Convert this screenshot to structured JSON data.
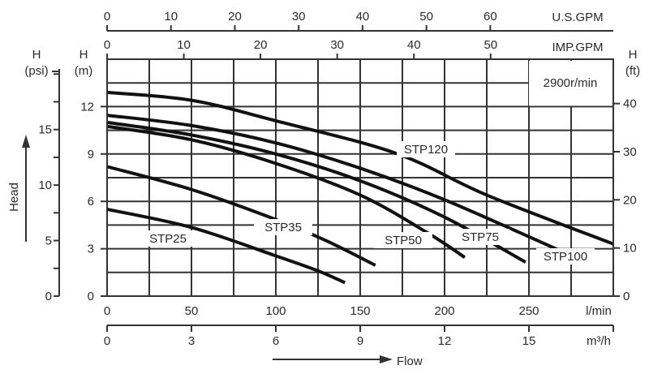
{
  "chart_data": {
    "type": "line",
    "annotation": "2900r/min",
    "xlabel": "Flow",
    "ylabel": "Head",
    "x_units": "l/min",
    "y_units_label": [
      "H",
      "(m)"
    ],
    "xlim": [
      0,
      300
    ],
    "ylim": [
      0,
      15
    ],
    "grid": true,
    "x_ticks": [
      0,
      50,
      100,
      150,
      200,
      250
    ],
    "y_ticks": [
      0,
      3,
      6,
      9,
      12
    ],
    "secondary_axes": {
      "us_gpm": {
        "label": "U.S.GPM",
        "ticks": [
          0,
          10,
          20,
          30,
          40,
          50,
          60
        ]
      },
      "imp_gpm": {
        "label": "IMP.GPM",
        "ticks": [
          0,
          10,
          20,
          30,
          40,
          50
        ]
      },
      "m3h": {
        "label": "m³/h",
        "ticks": [
          0,
          3,
          6,
          9,
          12,
          15
        ]
      },
      "psi": {
        "label": [
          "H",
          "(psi)"
        ],
        "ticks": [
          0,
          5,
          10,
          15
        ]
      },
      "ft": {
        "label": [
          "H",
          "(ft)"
        ],
        "ticks": [
          0,
          10,
          20,
          30,
          40
        ]
      }
    },
    "series": [
      {
        "name": "STP120",
        "x": [
          0,
          50,
          100,
          171,
          225,
          300
        ],
        "y": [
          12.9,
          12.4,
          11.1,
          9.05,
          6.4,
          3.3
        ]
      },
      {
        "name": "STP100",
        "x": [
          0,
          50,
          100,
          150,
          200,
          268
        ],
        "y": [
          11.45,
          10.8,
          9.7,
          8.1,
          6.1,
          2.9
        ]
      },
      {
        "name": "STP75",
        "x": [
          0,
          50,
          100,
          150,
          200,
          248
        ],
        "y": [
          11.0,
          10.2,
          9.0,
          7.3,
          5.0,
          2.15
        ]
      },
      {
        "name": "STP50",
        "x": [
          0,
          50,
          100,
          150,
          190,
          212
        ],
        "y": [
          10.75,
          9.9,
          8.4,
          6.4,
          4.0,
          2.45
        ]
      },
      {
        "name": "STP35",
        "x": [
          0,
          50,
          100,
          130,
          159
        ],
        "y": [
          8.2,
          6.75,
          4.85,
          3.5,
          1.95
        ]
      },
      {
        "name": "STP25",
        "x": [
          0,
          50,
          100,
          125,
          141
        ],
        "y": [
          5.5,
          4.35,
          2.55,
          1.6,
          0.85
        ]
      }
    ]
  }
}
